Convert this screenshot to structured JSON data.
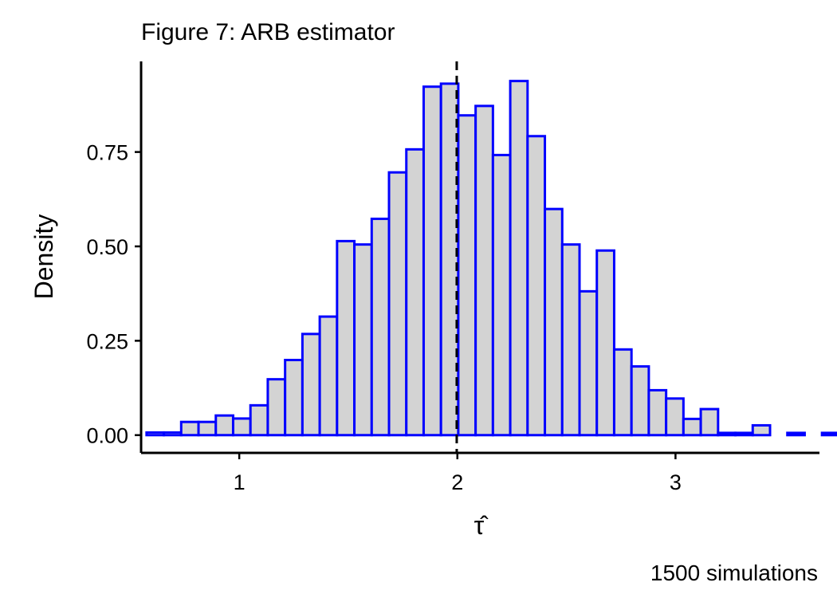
{
  "chart_data": {
    "type": "bar",
    "title": "Figure 7: ARB estimator",
    "xlabel": "τ̂",
    "ylabel": "Density",
    "caption": "1500 simulations",
    "xlim": [
      0.55,
      3.66
    ],
    "ylim": [
      -0.047,
      0.99
    ],
    "x_ticks": [
      1,
      2,
      3
    ],
    "x_tick_labels": [
      "1",
      "2",
      "3"
    ],
    "y_ticks": [
      0,
      0.25,
      0.5,
      0.75
    ],
    "y_tick_labels": [
      "0.00",
      "0.25",
      "0.50",
      "0.75"
    ],
    "bin_width": 0.0794,
    "bin_start": 0.575,
    "values": [
      0.007,
      0.007,
      0.035,
      0.035,
      0.052,
      0.044,
      0.079,
      0.148,
      0.199,
      0.268,
      0.314,
      0.514,
      0.505,
      0.573,
      0.696,
      0.757,
      0.923,
      0.931,
      0.847,
      0.872,
      0.742,
      0.938,
      0.792,
      0.599,
      0.505,
      0.381,
      0.489,
      0.227,
      0.182,
      0.119,
      0.097,
      0.043,
      0.069,
      0.006,
      0.006,
      0.026,
      0.0,
      0.006,
      0.0,
      0.006
    ],
    "reference_line": {
      "x": 1.997,
      "style": "dashed"
    },
    "colors": {
      "bar_fill": "#d3d3d3",
      "bar_stroke": "#0000ff",
      "axis": "#000000",
      "reference_line": "#000000"
    },
    "grid": false,
    "legend": "none"
  }
}
